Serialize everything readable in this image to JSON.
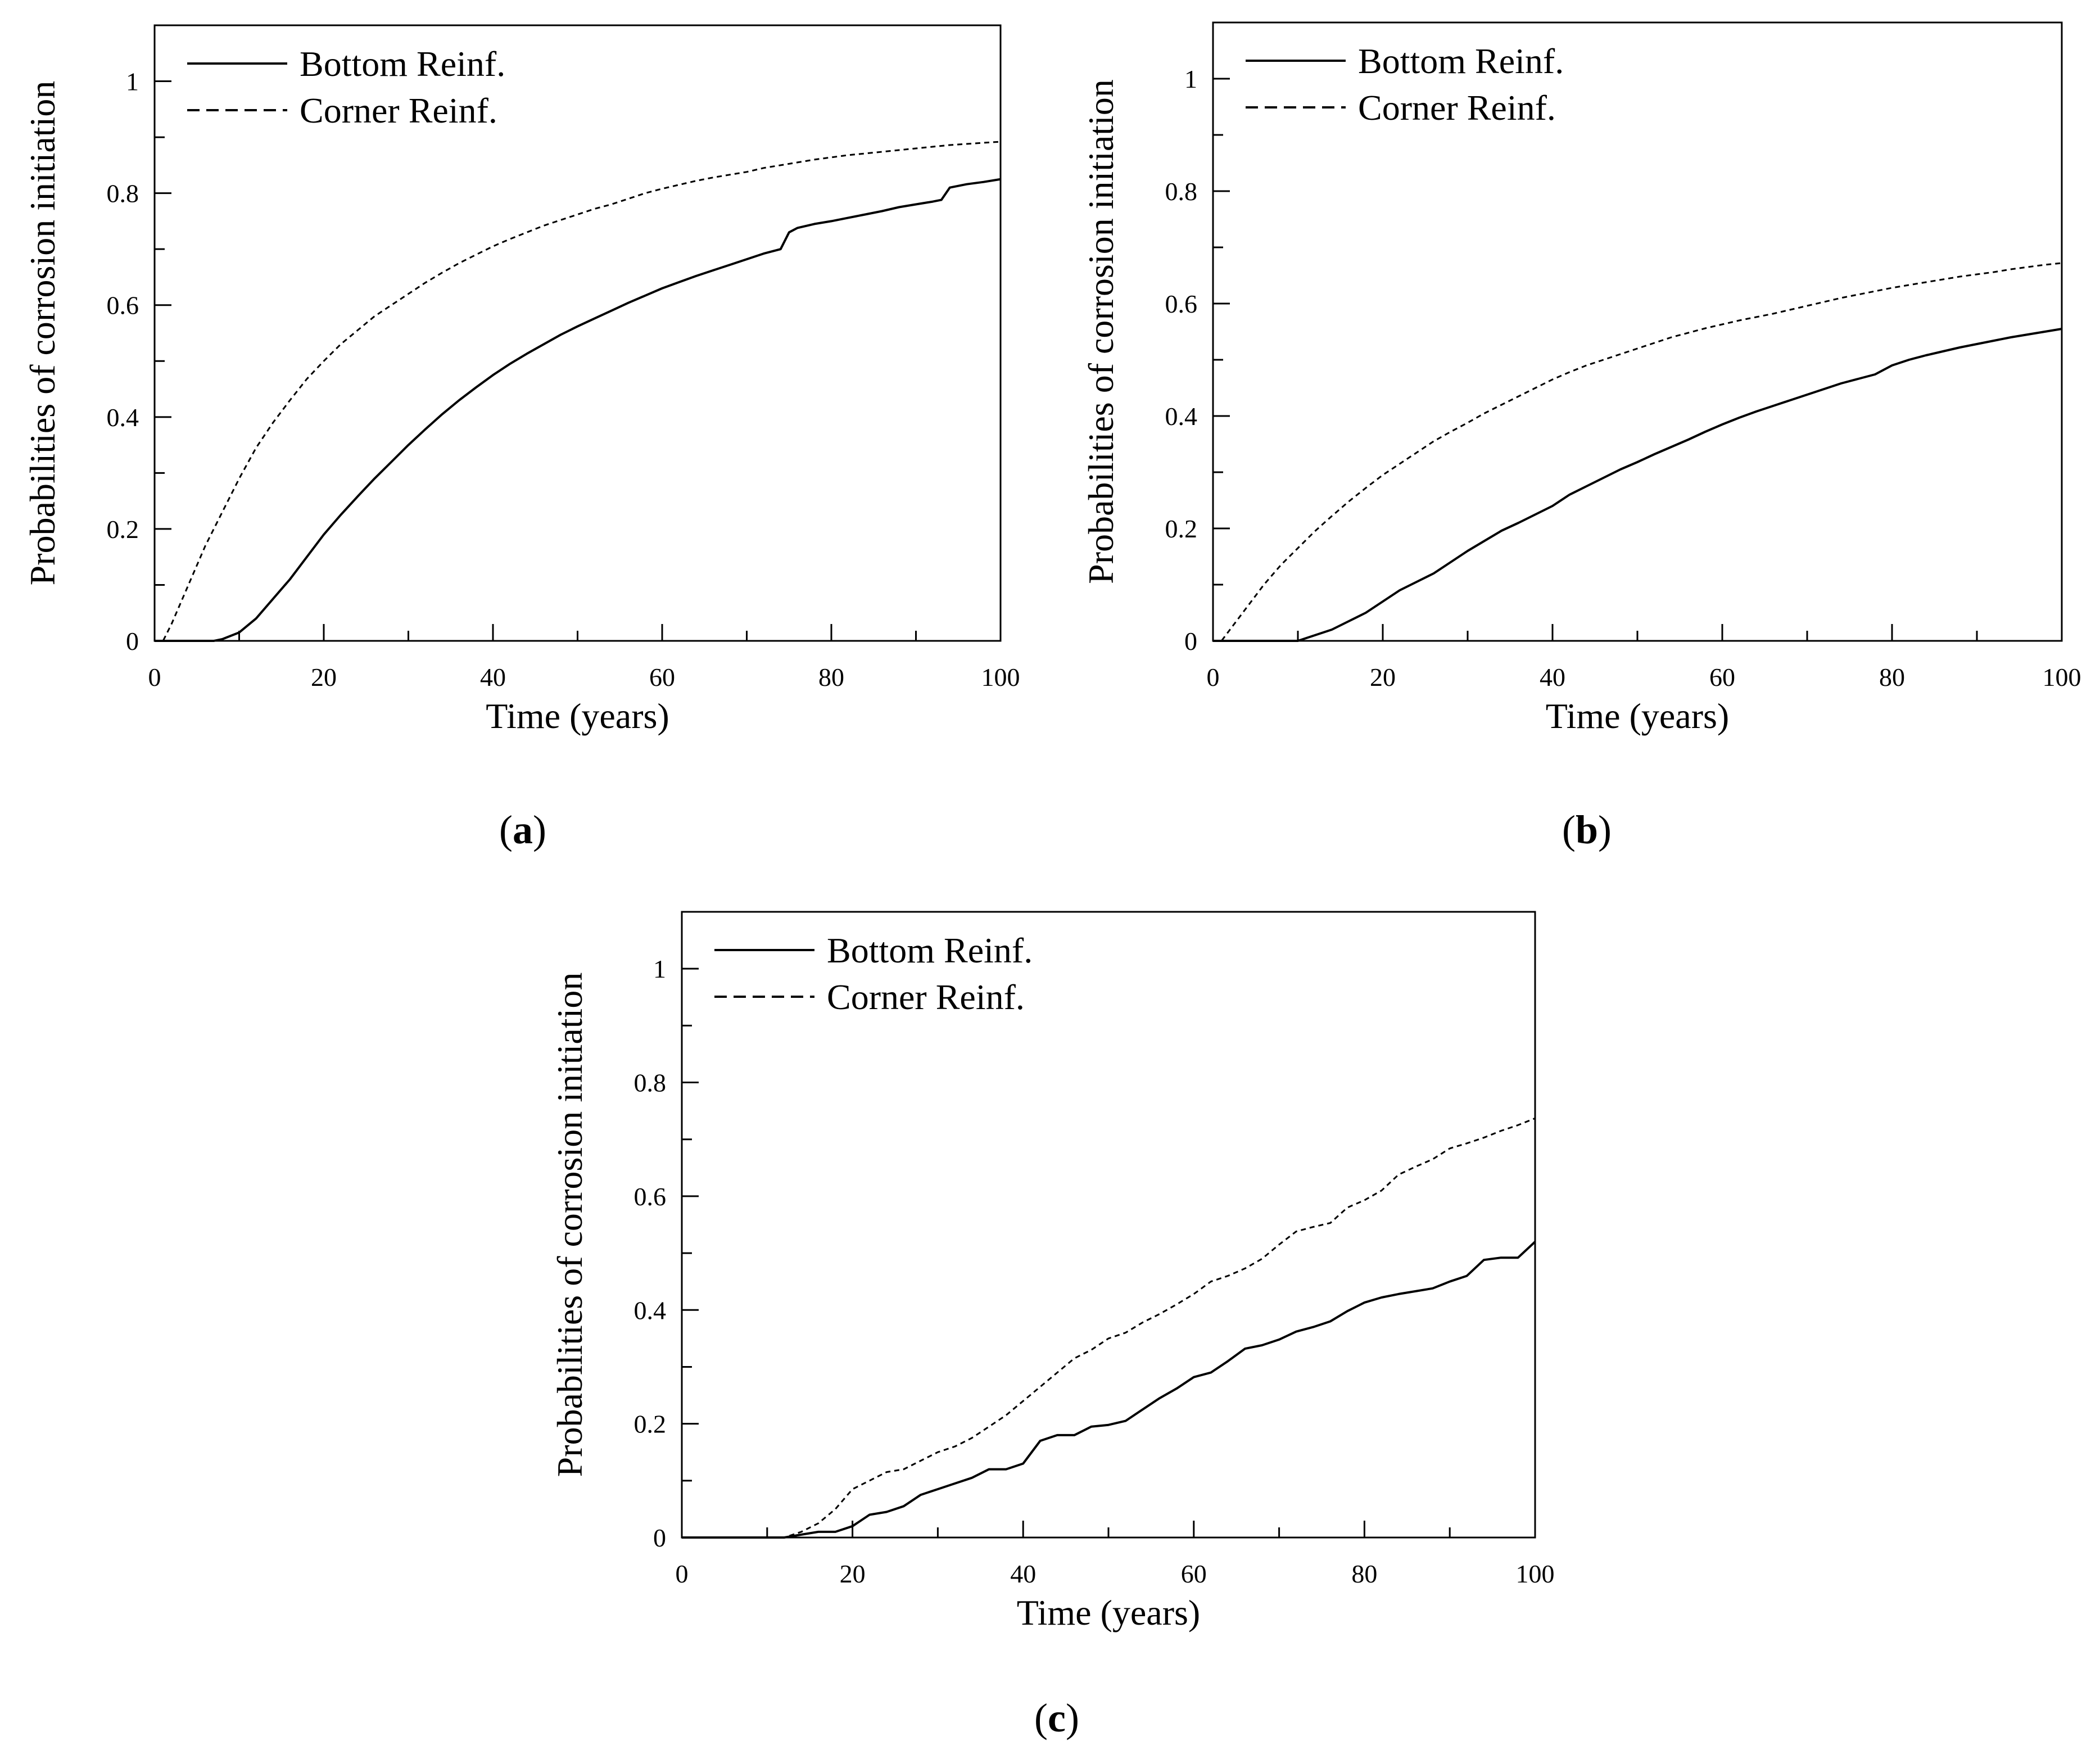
{
  "figure": {
    "panels": [
      "a",
      "b",
      "c"
    ]
  },
  "chart_data": [
    {
      "id": "a",
      "type": "line",
      "panel_label": "a",
      "xlabel": "Time (years)",
      "ylabel": "Probabilities of corrosion initiation",
      "xlim": [
        0,
        100
      ],
      "ylim": [
        0,
        1.1
      ],
      "xticks": [
        0,
        20,
        40,
        60,
        80,
        100
      ],
      "yticks": [
        0,
        0.2,
        0.4,
        0.6,
        0.8,
        1
      ],
      "xtick_labels": [
        "0",
        "20",
        "40",
        "60",
        "80",
        "100"
      ],
      "ytick_labels": [
        "0",
        "0.2",
        "0.4",
        "0.6",
        "0.8",
        "1"
      ],
      "legend_position": "top-left",
      "series": [
        {
          "name": "Bottom Reinf.",
          "style": "solid",
          "x": [
            0,
            7,
            8,
            10,
            12,
            14,
            16,
            18,
            20,
            22,
            24,
            26,
            28,
            30,
            32,
            34,
            36,
            38,
            40,
            42,
            44,
            46,
            48,
            50,
            52,
            54,
            56,
            58,
            60,
            62,
            64,
            66,
            68,
            70,
            72,
            74,
            75,
            76,
            78,
            80,
            82,
            84,
            86,
            88,
            90,
            92,
            93,
            94,
            96,
            98,
            100
          ],
          "y": [
            0,
            0,
            0.003,
            0.015,
            0.04,
            0.075,
            0.11,
            0.15,
            0.19,
            0.225,
            0.258,
            0.29,
            0.32,
            0.35,
            0.378,
            0.405,
            0.43,
            0.453,
            0.475,
            0.495,
            0.513,
            0.53,
            0.547,
            0.562,
            0.576,
            0.59,
            0.604,
            0.617,
            0.63,
            0.641,
            0.652,
            0.662,
            0.672,
            0.682,
            0.692,
            0.7,
            0.73,
            0.738,
            0.745,
            0.75,
            0.756,
            0.762,
            0.768,
            0.775,
            0.78,
            0.785,
            0.788,
            0.81,
            0.816,
            0.82,
            0.825
          ]
        },
        {
          "name": "Corner Reinf.",
          "style": "dashed",
          "x": [
            0,
            1,
            2,
            4,
            6,
            8,
            10,
            12,
            14,
            16,
            18,
            20,
            22,
            24,
            26,
            28,
            30,
            32,
            34,
            36,
            38,
            40,
            42,
            44,
            46,
            48,
            50,
            52,
            54,
            56,
            58,
            60,
            62,
            64,
            66,
            68,
            70,
            72,
            74,
            76,
            78,
            80,
            82,
            84,
            86,
            88,
            90,
            92,
            94,
            96,
            98,
            100
          ],
          "y": [
            0,
            0,
            0.03,
            0.1,
            0.17,
            0.23,
            0.29,
            0.345,
            0.39,
            0.43,
            0.468,
            0.5,
            0.53,
            0.555,
            0.58,
            0.6,
            0.62,
            0.64,
            0.658,
            0.675,
            0.69,
            0.705,
            0.718,
            0.73,
            0.742,
            0.752,
            0.762,
            0.772,
            0.78,
            0.79,
            0.8,
            0.808,
            0.815,
            0.822,
            0.828,
            0.833,
            0.838,
            0.845,
            0.85,
            0.855,
            0.86,
            0.864,
            0.868,
            0.871,
            0.874,
            0.877,
            0.88,
            0.883,
            0.886,
            0.888,
            0.89,
            0.892
          ]
        }
      ]
    },
    {
      "id": "b",
      "type": "line",
      "panel_label": "b",
      "xlabel": "Time (years)",
      "ylabel": "Probabilities of corrosion initiation",
      "xlim": [
        0,
        100
      ],
      "ylim": [
        0,
        1.1
      ],
      "xticks": [
        0,
        20,
        40,
        60,
        80,
        100
      ],
      "yticks": [
        0,
        0.2,
        0.4,
        0.6,
        0.8,
        1
      ],
      "xtick_labels": [
        "0",
        "20",
        "40",
        "60",
        "80",
        "100"
      ],
      "ytick_labels": [
        "0",
        "0.2",
        "0.4",
        "0.6",
        "0.8",
        "1"
      ],
      "legend_position": "top-left",
      "series": [
        {
          "name": "Bottom Reinf.",
          "style": "solid",
          "x": [
            0,
            10,
            12,
            14,
            16,
            18,
            20,
            22,
            24,
            26,
            28,
            30,
            32,
            34,
            36,
            38,
            40,
            42,
            44,
            46,
            48,
            50,
            52,
            54,
            56,
            58,
            60,
            62,
            64,
            66,
            68,
            70,
            72,
            74,
            76,
            78,
            80,
            82,
            84,
            86,
            88,
            90,
            92,
            94,
            96,
            98,
            100
          ],
          "y": [
            0,
            0,
            0.01,
            0.02,
            0.035,
            0.05,
            0.07,
            0.09,
            0.105,
            0.12,
            0.14,
            0.16,
            0.178,
            0.196,
            0.21,
            0.225,
            0.24,
            0.26,
            0.275,
            0.29,
            0.305,
            0.318,
            0.332,
            0.345,
            0.358,
            0.372,
            0.385,
            0.397,
            0.408,
            0.418,
            0.428,
            0.438,
            0.448,
            0.458,
            0.466,
            0.474,
            0.49,
            0.5,
            0.508,
            0.515,
            0.522,
            0.528,
            0.534,
            0.54,
            0.545,
            0.55,
            0.555
          ]
        },
        {
          "name": "Corner Reinf.",
          "style": "dashed",
          "x": [
            0,
            1,
            2,
            4,
            6,
            8,
            10,
            12,
            14,
            16,
            18,
            20,
            22,
            24,
            26,
            28,
            30,
            32,
            34,
            36,
            38,
            40,
            42,
            44,
            46,
            48,
            50,
            52,
            54,
            56,
            58,
            60,
            62,
            64,
            66,
            68,
            70,
            72,
            74,
            76,
            78,
            80,
            82,
            84,
            86,
            88,
            90,
            92,
            94,
            96,
            98,
            100
          ],
          "y": [
            0,
            0,
            0.02,
            0.06,
            0.1,
            0.135,
            0.165,
            0.195,
            0.222,
            0.248,
            0.272,
            0.295,
            0.315,
            0.335,
            0.355,
            0.372,
            0.388,
            0.405,
            0.42,
            0.435,
            0.45,
            0.465,
            0.478,
            0.49,
            0.5,
            0.51,
            0.52,
            0.53,
            0.54,
            0.548,
            0.556,
            0.563,
            0.57,
            0.576,
            0.582,
            0.589,
            0.596,
            0.603,
            0.61,
            0.616,
            0.622,
            0.628,
            0.633,
            0.638,
            0.643,
            0.648,
            0.652,
            0.656,
            0.661,
            0.665,
            0.669,
            0.672
          ]
        }
      ]
    },
    {
      "id": "c",
      "type": "line",
      "panel_label": "c",
      "xlabel": "Time (years)",
      "ylabel": "Probabilities of corrosion initiation",
      "xlim": [
        0,
        100
      ],
      "ylim": [
        0,
        1.1
      ],
      "xticks": [
        0,
        20,
        40,
        60,
        80,
        100
      ],
      "yticks": [
        0,
        0.2,
        0.4,
        0.6,
        0.8,
        1
      ],
      "xtick_labels": [
        "0",
        "20",
        "40",
        "60",
        "80",
        "100"
      ],
      "ytick_labels": [
        "0",
        "0.2",
        "0.4",
        "0.6",
        "0.8",
        "1"
      ],
      "legend_position": "top-left",
      "series": [
        {
          "name": "Bottom Reinf.",
          "style": "solid",
          "x": [
            0,
            12,
            14,
            16,
            18,
            20,
            22,
            24,
            26,
            28,
            30,
            32,
            34,
            36,
            38,
            40,
            42,
            44,
            46,
            48,
            50,
            52,
            54,
            56,
            58,
            60,
            62,
            64,
            66,
            68,
            70,
            72,
            74,
            76,
            78,
            80,
            82,
            84,
            86,
            88,
            90,
            92,
            94,
            96,
            98,
            100
          ],
          "y": [
            0,
            0,
            0.005,
            0.01,
            0.01,
            0.02,
            0.04,
            0.045,
            0.055,
            0.075,
            0.085,
            0.095,
            0.105,
            0.12,
            0.12,
            0.13,
            0.17,
            0.18,
            0.18,
            0.195,
            0.198,
            0.205,
            0.225,
            0.245,
            0.262,
            0.282,
            0.29,
            0.31,
            0.332,
            0.338,
            0.348,
            0.362,
            0.37,
            0.38,
            0.398,
            0.413,
            0.422,
            0.428,
            0.433,
            0.438,
            0.45,
            0.46,
            0.488,
            0.492,
            0.492,
            0.52
          ]
        },
        {
          "name": "Corner Reinf.",
          "style": "dashed",
          "x": [
            0,
            12,
            14,
            16,
            18,
            20,
            22,
            24,
            26,
            28,
            30,
            32,
            34,
            36,
            38,
            40,
            42,
            44,
            46,
            48,
            50,
            52,
            54,
            56,
            58,
            60,
            62,
            64,
            66,
            68,
            70,
            72,
            74,
            76,
            78,
            80,
            82,
            84,
            86,
            88,
            90,
            92,
            94,
            96,
            98,
            100
          ],
          "y": [
            0,
            0,
            0.01,
            0.025,
            0.05,
            0.085,
            0.1,
            0.115,
            0.12,
            0.135,
            0.15,
            0.16,
            0.175,
            0.195,
            0.215,
            0.24,
            0.265,
            0.29,
            0.315,
            0.33,
            0.35,
            0.36,
            0.378,
            0.393,
            0.41,
            0.428,
            0.45,
            0.46,
            0.473,
            0.49,
            0.515,
            0.538,
            0.546,
            0.553,
            0.58,
            0.593,
            0.61,
            0.638,
            0.652,
            0.665,
            0.684,
            0.693,
            0.703,
            0.715,
            0.725,
            0.737
          ]
        }
      ]
    }
  ]
}
